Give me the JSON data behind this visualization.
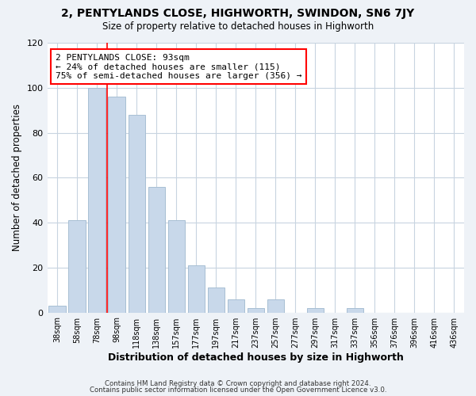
{
  "title": "2, PENTYLANDS CLOSE, HIGHWORTH, SWINDON, SN6 7JY",
  "subtitle": "Size of property relative to detached houses in Highworth",
  "xlabel": "Distribution of detached houses by size in Highworth",
  "ylabel": "Number of detached properties",
  "bar_color": "#c8d8ea",
  "bar_edge_color": "#a8bfd4",
  "categories": [
    "38sqm",
    "58sqm",
    "78sqm",
    "98sqm",
    "118sqm",
    "138sqm",
    "157sqm",
    "177sqm",
    "197sqm",
    "217sqm",
    "237sqm",
    "257sqm",
    "277sqm",
    "297sqm",
    "317sqm",
    "337sqm",
    "356sqm",
    "376sqm",
    "396sqm",
    "416sqm",
    "436sqm"
  ],
  "values": [
    3,
    41,
    100,
    96,
    88,
    56,
    41,
    21,
    11,
    6,
    2,
    6,
    0,
    2,
    0,
    2,
    0,
    0,
    0,
    0,
    0
  ],
  "annotation_text": "2 PENTYLANDS CLOSE: 93sqm\n← 24% of detached houses are smaller (115)\n75% of semi-detached houses are larger (356) →",
  "annotation_box_color": "white",
  "annotation_box_edge_color": "red",
  "ylim": [
    0,
    120
  ],
  "yticks": [
    0,
    20,
    40,
    60,
    80,
    100,
    120
  ],
  "footer1": "Contains HM Land Registry data © Crown copyright and database right 2024.",
  "footer2": "Contains public sector information licensed under the Open Government Licence v3.0.",
  "bg_color": "#eef2f7",
  "plot_bg_color": "white",
  "grid_color": "#c8d4e0"
}
